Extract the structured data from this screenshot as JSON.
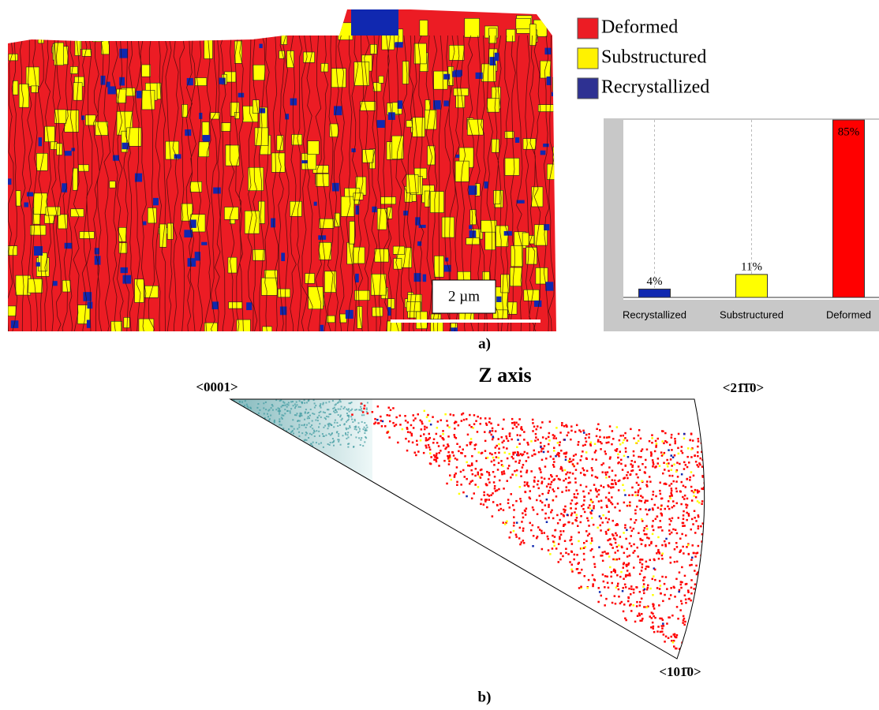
{
  "panel_a_label": "a)",
  "panel_b_label": "b)",
  "map": {
    "scale_bar_label": "2 µm"
  },
  "legend": {
    "items": [
      {
        "label": "Deformed",
        "color": "#ec1c24"
      },
      {
        "label": "Substructured",
        "color": "#fff200"
      },
      {
        "label": "Recrystallized",
        "color": "#2e3192"
      }
    ]
  },
  "chart_data": {
    "type": "bar",
    "categories": [
      "Recrystallized",
      "Substructured",
      "Deformed"
    ],
    "values": [
      4,
      11,
      85
    ],
    "value_labels": [
      "4%",
      "11%",
      "85%"
    ],
    "colors": [
      "#1028b0",
      "#ffff00",
      "#ff0000"
    ],
    "ylim": [
      0,
      85
    ],
    "grid": true
  },
  "pole_figure": {
    "title": "Z axis",
    "corner_labels": [
      "<0001>",
      "<21̄1̄0>",
      "<101̄0>"
    ]
  }
}
